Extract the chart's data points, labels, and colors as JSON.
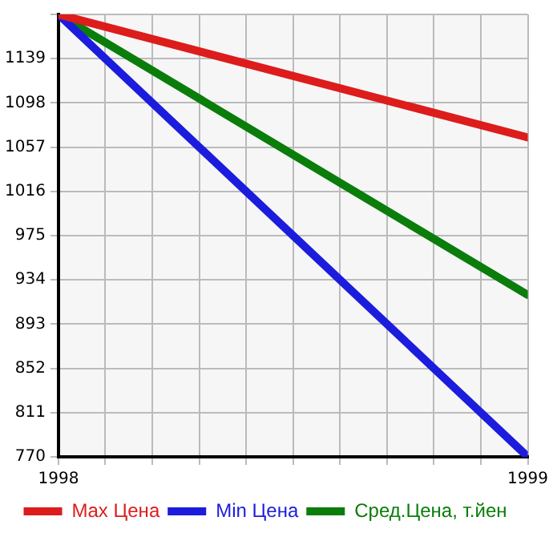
{
  "chart_data": {
    "type": "line",
    "x": [
      1998,
      1999
    ],
    "series": [
      {
        "name": "Max Цена",
        "color": "#dd1c1c",
        "values": [
          1180,
          1066
        ]
      },
      {
        "name": "Min Цена",
        "color": "#1c1cdd",
        "values": [
          1180,
          770
        ]
      },
      {
        "name": "Сред.Цена, т.йен",
        "color": "#0a7d0a",
        "values": [
          1180,
          920
        ]
      }
    ],
    "xlim": [
      1998,
      1999
    ],
    "xticks": [
      1998,
      {
        "value": 1998.1,
        "label": null
      },
      {
        "value": 1998.2,
        "label": null
      },
      {
        "value": 1998.3,
        "label": null
      },
      {
        "value": 1998.4,
        "label": null
      },
      {
        "value": 1998.5,
        "label": null
      },
      {
        "value": 1998.6,
        "label": null
      },
      {
        "value": 1998.7,
        "label": null
      },
      {
        "value": 1998.8,
        "label": null
      },
      {
        "value": 1998.9,
        "label": null
      },
      1999
    ],
    "ylim": [
      770,
      1180
    ],
    "yticks": [
      770,
      811,
      852,
      893,
      934,
      975,
      1016,
      1057,
      1098,
      1139,
      {
        "value": 1180,
        "label": null
      }
    ],
    "grid": true,
    "legend": "bottom",
    "marker": "none",
    "line_style": "solid"
  }
}
